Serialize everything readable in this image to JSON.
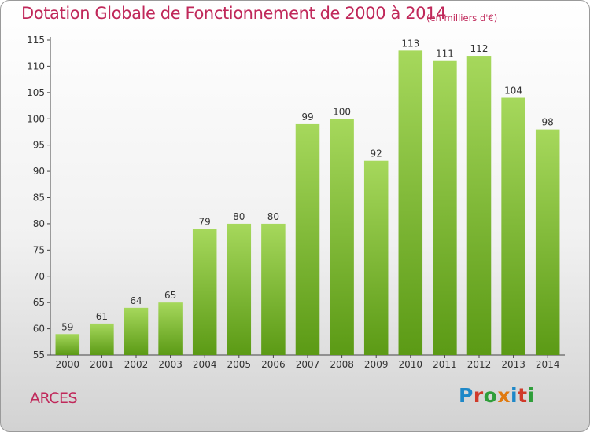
{
  "header": {
    "title": "Dotation Globale de Fonctionnement de 2000 à 2014",
    "unit": "(en milliers d'€)"
  },
  "footer": {
    "commune": "ARCES",
    "logo": "Proxiti",
    "logo_colors": [
      "#1e88c8",
      "#d03a2a",
      "#2f9e3a",
      "#e07a10",
      "#1e88c8",
      "#d03a2a",
      "#2f9e3a"
    ]
  },
  "colors": {
    "title": "#c0285a",
    "bar_light": "#a6d85c",
    "bar_dark": "#5b9a15",
    "axis": "#444444"
  },
  "chart_data": {
    "type": "bar",
    "categories": [
      "2000",
      "2001",
      "2002",
      "2003",
      "2004",
      "2005",
      "2006",
      "2007",
      "2008",
      "2009",
      "2010",
      "2011",
      "2012",
      "2013",
      "2014"
    ],
    "values": [
      59,
      61,
      64,
      65,
      79,
      80,
      80,
      99,
      100,
      92,
      113,
      111,
      112,
      104,
      98
    ],
    "ylim": [
      55,
      115
    ],
    "yticks": [
      55,
      60,
      65,
      70,
      75,
      80,
      85,
      90,
      95,
      100,
      105,
      110,
      115
    ],
    "grid": false,
    "legend": "none"
  }
}
